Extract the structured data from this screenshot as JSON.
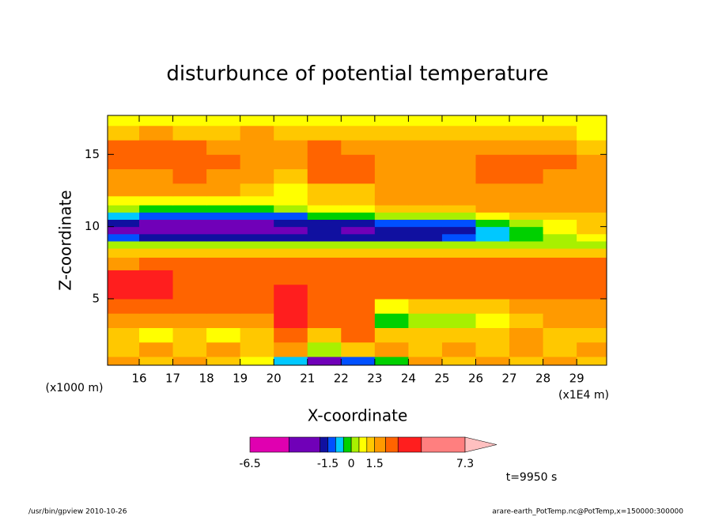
{
  "chart_data": {
    "type": "contour",
    "title": "disturbunce of potential temperature",
    "x_label": "X-coordinate",
    "y_label": "Z-coordinate",
    "x_unit": "(x1E4 m)",
    "y_unit": "(x1000 m)",
    "time_label": "t=9950 s",
    "footer_left": "/usr/bin/gpview  2010-10-26",
    "footer_right": "arare-earth_PotTemp.nc@PotTemp,x=150000:300000",
    "xlim": [
      15.06,
      29.89
    ],
    "ylim": [
      0.4,
      17.7
    ],
    "xticks": [
      16,
      17,
      18,
      19,
      20,
      21,
      22,
      23,
      24,
      25,
      26,
      27,
      28,
      29
    ],
    "yticks": [
      5,
      10,
      15
    ],
    "x": [
      15.5,
      16.5,
      17.5,
      18.5,
      19.5,
      20.5,
      21.5,
      22.5,
      23.5,
      24.5,
      25.5,
      26.5,
      27.5,
      28.5,
      29.5
    ],
    "z": [
      0.5,
      1.5,
      2.5,
      3.5,
      4.5,
      5.5,
      6.5,
      7.5,
      8.25,
      8.75,
      9.25,
      9.75,
      10.25,
      10.75,
      11.25,
      11.75,
      12.5,
      13.5,
      14.5,
      15.5,
      16.5,
      17.5
    ],
    "field": [
      [
        1.8,
        1.2,
        1.8,
        1.2,
        0.7,
        -0.7,
        -3,
        -1.2,
        -0.3,
        1.8,
        1.2,
        1.8,
        1.2,
        1.8,
        1.2
      ],
      [
        1.2,
        1.8,
        1.2,
        1.8,
        1.2,
        1.8,
        0.3,
        1.2,
        1.8,
        1.2,
        1.8,
        1.2,
        1.8,
        1.2,
        1.8
      ],
      [
        1.2,
        0.7,
        1.2,
        0.7,
        1.2,
        2.5,
        1.2,
        2.5,
        1.2,
        1.2,
        1.2,
        1.2,
        1.8,
        1.2,
        1.2
      ],
      [
        1.8,
        1.8,
        1.8,
        1.8,
        1.8,
        3.5,
        2.5,
        2.5,
        -0.3,
        0.2,
        0.2,
        0.7,
        1.2,
        1.8,
        1.8
      ],
      [
        2.5,
        2.5,
        2.5,
        2.5,
        2.5,
        3.5,
        2.5,
        2.5,
        0.7,
        1.2,
        1.2,
        1.2,
        1.8,
        1.8,
        1.8
      ],
      [
        3.5,
        3.5,
        2.5,
        2.5,
        2.5,
        3.5,
        2.5,
        2.5,
        2.5,
        2.5,
        2.5,
        2.5,
        2.5,
        2.5,
        2.5
      ],
      [
        3.5,
        3.5,
        2.5,
        2.5,
        2.5,
        2.5,
        2.5,
        2.5,
        2.5,
        2.5,
        2.5,
        2.5,
        2.5,
        2.5,
        2.5
      ],
      [
        1.8,
        2.5,
        2.5,
        2.5,
        2.5,
        2.5,
        2.5,
        2.5,
        2.5,
        2.5,
        2.5,
        2.5,
        2.5,
        2.5,
        2.5
      ],
      [
        1.2,
        1.2,
        1.2,
        1.2,
        1.2,
        1.2,
        1.2,
        1.2,
        1.2,
        1.2,
        1.2,
        1.2,
        1.2,
        1.2,
        1.2
      ],
      [
        0.2,
        0.2,
        0.2,
        0.2,
        0.2,
        0.2,
        0.2,
        0.2,
        0.2,
        0.2,
        0.2,
        0.2,
        0.2,
        0.2,
        0.2
      ],
      [
        -1.2,
        -1.7,
        -1.7,
        -1.7,
        -1.7,
        -1.7,
        -1.7,
        -1.7,
        -1.7,
        -1.7,
        -1.2,
        -0.7,
        -0.3,
        0.2,
        0.7
      ],
      [
        -2.5,
        -3,
        -3,
        -3,
        -3,
        -2.5,
        -1.7,
        -2.5,
        -1.7,
        -1.7,
        -1.7,
        -0.7,
        -0.3,
        0.7,
        1.2
      ],
      [
        -1.7,
        -2.5,
        -2.5,
        -2.5,
        -2.5,
        -1.7,
        -1.7,
        -1.7,
        -1.2,
        -1.2,
        -1.2,
        -0.3,
        0.2,
        0.7,
        1.2
      ],
      [
        -0.7,
        -1.2,
        -1.2,
        -1.2,
        -1.2,
        -1.2,
        -0.3,
        -0.3,
        0.2,
        0.2,
        0.2,
        0.7,
        1.2,
        1.2,
        1.2
      ],
      [
        0.2,
        -0.3,
        -0.3,
        -0.3,
        -0.3,
        0.2,
        0.7,
        0.7,
        1.2,
        1.2,
        1.2,
        1.8,
        1.8,
        1.8,
        1.8
      ],
      [
        0.7,
        0.7,
        0.7,
        0.7,
        0.7,
        0.7,
        1.2,
        1.2,
        1.8,
        1.8,
        1.8,
        1.8,
        1.8,
        1.8,
        1.8
      ],
      [
        1.8,
        1.8,
        1.8,
        1.8,
        1.2,
        0.7,
        1.2,
        1.2,
        1.8,
        1.8,
        1.8,
        1.8,
        1.8,
        1.8,
        1.8
      ],
      [
        1.8,
        1.8,
        2.5,
        1.8,
        1.8,
        1.2,
        2.5,
        2.5,
        1.8,
        1.8,
        1.8,
        2.5,
        2.5,
        1.8,
        1.8
      ],
      [
        2.5,
        2.5,
        2.5,
        2.5,
        1.8,
        1.8,
        2.5,
        2.5,
        1.8,
        1.8,
        1.8,
        2.5,
        2.5,
        2.5,
        1.8
      ],
      [
        2.5,
        2.5,
        2.5,
        1.8,
        1.8,
        1.8,
        2.5,
        1.8,
        1.8,
        1.8,
        1.8,
        1.8,
        1.8,
        1.8,
        1.2
      ],
      [
        1.2,
        1.8,
        1.2,
        1.2,
        1.8,
        1.2,
        1.2,
        1.2,
        1.2,
        1.2,
        1.2,
        1.2,
        1.2,
        1.2,
        0.7
      ],
      [
        0.7,
        0.7,
        0.7,
        0.7,
        0.7,
        0.7,
        0.7,
        0.7,
        0.7,
        0.7,
        0.7,
        0.7,
        0.7,
        0.7,
        0.7
      ]
    ],
    "levels": [
      -6.5,
      -4,
      -2,
      -1.5,
      -1,
      -0.5,
      0,
      0.5,
      1,
      1.5,
      2.2,
      3,
      4.5,
      7.3
    ],
    "colors": [
      "#e000b0",
      "#7000b8",
      "#1010a0",
      "#0050ff",
      "#00c8ff",
      "#00d000",
      "#a8f000",
      "#ffff00",
      "#ffc800",
      "#ff9a00",
      "#ff6400",
      "#ff1e1e",
      "#ff7f7f"
    ],
    "over_color": "#ffc0c0",
    "colorbar_ticks": [
      -6.5,
      -1.5,
      0,
      1.5,
      7.3
    ]
  }
}
